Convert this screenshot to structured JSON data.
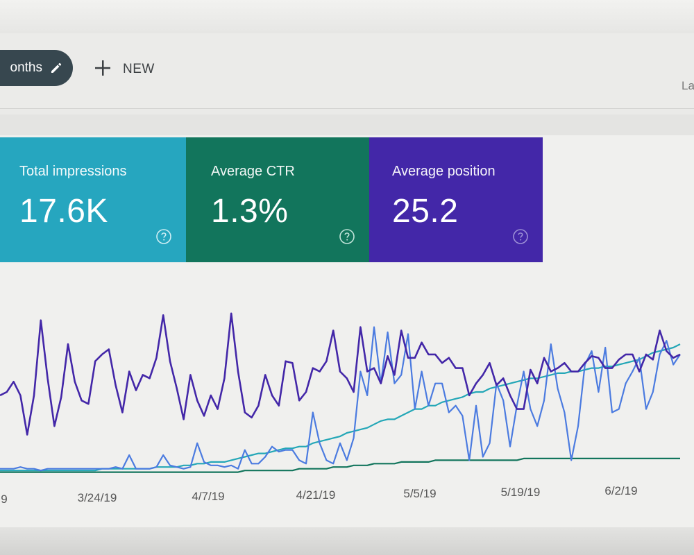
{
  "toolbar": {
    "filter_chip_label": "onths",
    "new_label": "NEW",
    "right_cutoff_text": "La"
  },
  "metrics": [
    {
      "title": "Total impressions",
      "value": "17.6K",
      "color": "#26a6bf"
    },
    {
      "title": "Average CTR",
      "value": "1.3%",
      "color": "#12755c"
    },
    {
      "title": "Average position",
      "value": "25.2",
      "color": "#4327a8"
    }
  ],
  "icons": {
    "edit": "pencil-icon",
    "add": "plus-icon",
    "help": "help-circle-icon"
  },
  "chart_data": {
    "type": "line",
    "title": "",
    "xlabel": "",
    "ylabel": "",
    "x_ticks": [
      "9",
      "3/24/19",
      "4/7/19",
      "4/21/19",
      "5/5/19",
      "5/19/19",
      "6/2/19"
    ],
    "grid": false,
    "series": [
      {
        "color": "#4327a8",
        "values": [
          0.48,
          0.5,
          0.56,
          0.48,
          0.25,
          0.48,
          0.92,
          0.58,
          0.3,
          0.47,
          0.78,
          0.56,
          0.45,
          0.43,
          0.68,
          0.72,
          0.75,
          0.54,
          0.38,
          0.62,
          0.51,
          0.6,
          0.58,
          0.7,
          0.95,
          0.68,
          0.52,
          0.34,
          0.6,
          0.45,
          0.36,
          0.48,
          0.4,
          0.58,
          0.96,
          0.62,
          0.38,
          0.35,
          0.42,
          0.6,
          0.48,
          0.42,
          0.68,
          0.67,
          0.45,
          0.5,
          0.64,
          0.62,
          0.68,
          0.86,
          0.62,
          0.58,
          0.5,
          0.88,
          0.62,
          0.64,
          0.55,
          0.71,
          0.6,
          0.86,
          0.7,
          0.7,
          0.79,
          0.72,
          0.72,
          0.67,
          0.7,
          0.64,
          0.64,
          0.48,
          0.55,
          0.6,
          0.67,
          0.54,
          0.58,
          0.48,
          0.4,
          0.4,
          0.63,
          0.55,
          0.7,
          0.62,
          0.64,
          0.67,
          0.62,
          0.62,
          0.67,
          0.71,
          0.7,
          0.64,
          0.64,
          0.69,
          0.72,
          0.72,
          0.62,
          0.72,
          0.69,
          0.86,
          0.74,
          0.7,
          0.72
        ],
        "y_range": [
          0,
          1
        ]
      },
      {
        "color": "#4b7be0",
        "values": [
          0.05,
          0.05,
          0.05,
          0.06,
          0.05,
          0.05,
          0.04,
          0.05,
          0.05,
          0.05,
          0.05,
          0.05,
          0.05,
          0.05,
          0.05,
          0.05,
          0.05,
          0.06,
          0.05,
          0.13,
          0.05,
          0.05,
          0.05,
          0.06,
          0.13,
          0.07,
          0.06,
          0.05,
          0.06,
          0.2,
          0.09,
          0.07,
          0.07,
          0.06,
          0.07,
          0.05,
          0.16,
          0.08,
          0.08,
          0.12,
          0.18,
          0.15,
          0.16,
          0.16,
          0.1,
          0.08,
          0.38,
          0.2,
          0.1,
          0.08,
          0.2,
          0.1,
          0.23,
          0.62,
          0.48,
          0.88,
          0.55,
          0.85,
          0.55,
          0.6,
          0.84,
          0.4,
          0.62,
          0.42,
          0.55,
          0.55,
          0.38,
          0.42,
          0.36,
          0.1,
          0.42,
          0.12,
          0.2,
          0.55,
          0.45,
          0.18,
          0.42,
          0.62,
          0.4,
          0.3,
          0.45,
          0.78,
          0.52,
          0.38,
          0.1,
          0.3,
          0.66,
          0.74,
          0.5,
          0.76,
          0.38,
          0.4,
          0.55,
          0.62,
          0.7,
          0.4,
          0.5,
          0.72,
          0.8,
          0.66,
          0.72
        ],
        "y_range": [
          0,
          1
        ]
      },
      {
        "color": "#24a7b7",
        "values": [
          0.04,
          0.04,
          0.04,
          0.04,
          0.04,
          0.04,
          0.04,
          0.04,
          0.04,
          0.04,
          0.04,
          0.04,
          0.04,
          0.04,
          0.04,
          0.05,
          0.05,
          0.05,
          0.05,
          0.05,
          0.05,
          0.05,
          0.05,
          0.06,
          0.06,
          0.06,
          0.06,
          0.07,
          0.07,
          0.08,
          0.08,
          0.09,
          0.09,
          0.09,
          0.1,
          0.11,
          0.12,
          0.13,
          0.14,
          0.14,
          0.15,
          0.16,
          0.17,
          0.17,
          0.18,
          0.18,
          0.2,
          0.21,
          0.22,
          0.23,
          0.24,
          0.26,
          0.27,
          0.28,
          0.29,
          0.31,
          0.33,
          0.34,
          0.34,
          0.36,
          0.38,
          0.4,
          0.4,
          0.42,
          0.42,
          0.44,
          0.45,
          0.46,
          0.47,
          0.49,
          0.5,
          0.5,
          0.52,
          0.53,
          0.54,
          0.55,
          0.56,
          0.57,
          0.58,
          0.58,
          0.59,
          0.6,
          0.61,
          0.61,
          0.62,
          0.62,
          0.63,
          0.64,
          0.64,
          0.65,
          0.65,
          0.66,
          0.67,
          0.68,
          0.69,
          0.71,
          0.73,
          0.74,
          0.75,
          0.76,
          0.78
        ],
        "y_range": [
          0,
          1
        ]
      },
      {
        "color": "#12755c",
        "values": [
          0.03,
          0.03,
          0.03,
          0.03,
          0.03,
          0.03,
          0.03,
          0.03,
          0.03,
          0.03,
          0.03,
          0.03,
          0.03,
          0.03,
          0.03,
          0.03,
          0.03,
          0.03,
          0.03,
          0.03,
          0.03,
          0.03,
          0.03,
          0.03,
          0.03,
          0.03,
          0.03,
          0.03,
          0.03,
          0.03,
          0.03,
          0.03,
          0.03,
          0.03,
          0.03,
          0.03,
          0.04,
          0.04,
          0.04,
          0.04,
          0.04,
          0.04,
          0.04,
          0.04,
          0.05,
          0.05,
          0.05,
          0.05,
          0.05,
          0.06,
          0.06,
          0.06,
          0.07,
          0.07,
          0.07,
          0.08,
          0.08,
          0.08,
          0.08,
          0.09,
          0.09,
          0.09,
          0.09,
          0.09,
          0.1,
          0.1,
          0.1,
          0.1,
          0.1,
          0.1,
          0.1,
          0.1,
          0.1,
          0.1,
          0.1,
          0.1,
          0.1,
          0.11,
          0.11,
          0.11,
          0.11,
          0.11,
          0.11,
          0.11,
          0.11,
          0.11,
          0.11,
          0.11,
          0.11,
          0.11,
          0.11,
          0.11,
          0.11,
          0.11,
          0.11,
          0.11,
          0.11,
          0.11,
          0.11,
          0.11,
          0.11
        ],
        "y_range": [
          0,
          1
        ]
      }
    ]
  }
}
